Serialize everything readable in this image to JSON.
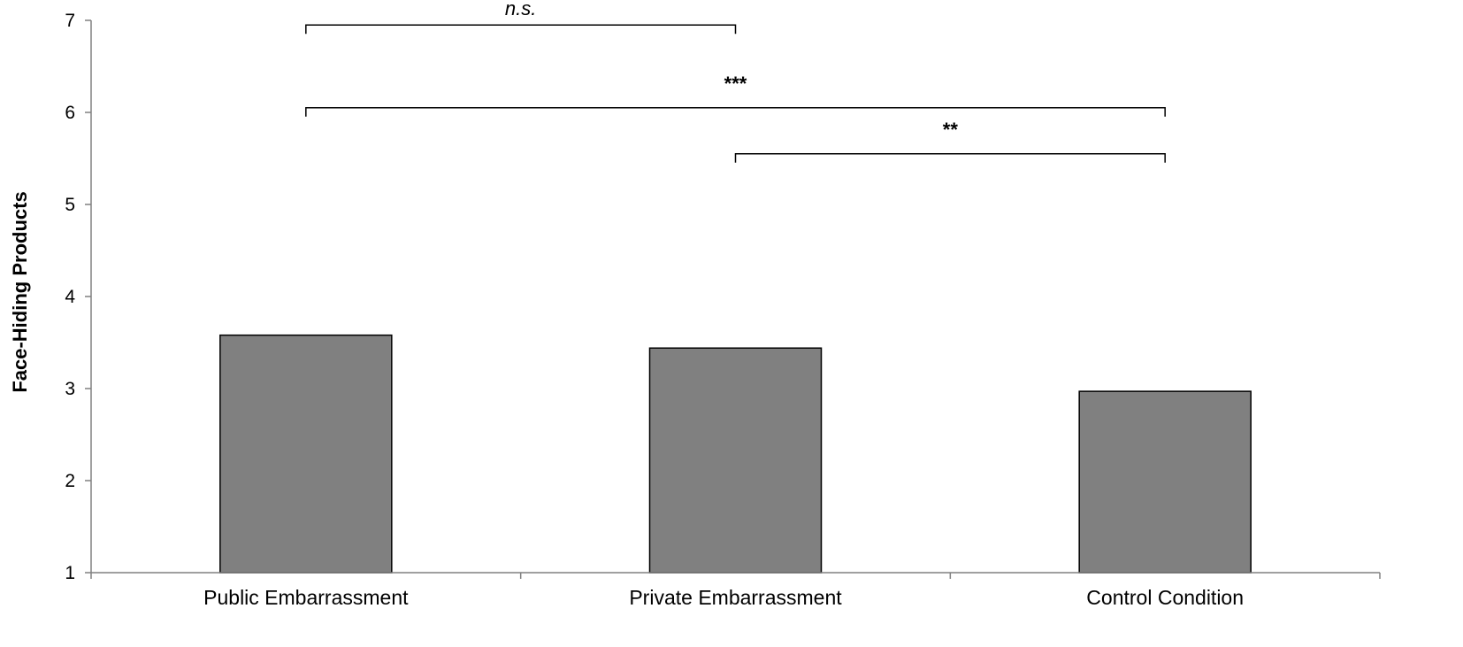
{
  "chart_data": {
    "type": "bar",
    "categories": [
      "Public Embarrassment",
      "Private Embarrassment",
      "Control Condition"
    ],
    "values": [
      3.58,
      3.44,
      2.97
    ],
    "title": "",
    "xlabel": "",
    "ylabel": "Face-Hiding Products",
    "ylim": [
      1,
      7
    ],
    "yticks": [
      1,
      2,
      3,
      4,
      5,
      6,
      7
    ],
    "grid": false,
    "bar_color": "#808080",
    "significance": [
      {
        "from": 0,
        "to": 1,
        "label": "n.s.",
        "style": "italic",
        "level": 6.95
      },
      {
        "from": 0,
        "to": 2,
        "label": "***",
        "style": "bold",
        "level": 6.05
      },
      {
        "from": 1,
        "to": 2,
        "label": "**",
        "style": "bold",
        "level": 5.55
      }
    ]
  }
}
